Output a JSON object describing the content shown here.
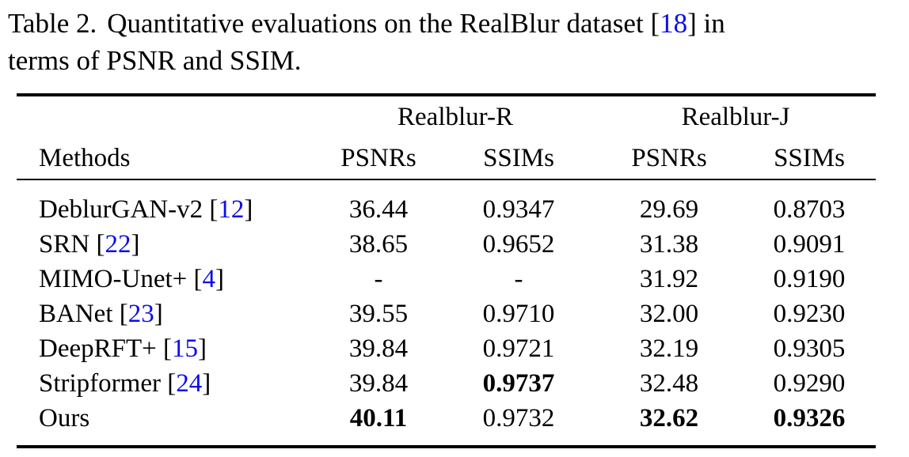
{
  "colors": {
    "citation_blue": "#0c0cee",
    "text": "#000000",
    "background": "#ffffff"
  },
  "caption": {
    "label": "Table 2.",
    "text": "Quantitative evaluations on the RealBlur dataset",
    "cite_open": "[",
    "cite": "18",
    "cite_close": "]",
    "line1_end": "in",
    "line2": "terms of PSNR and SSIM."
  },
  "table": {
    "group_headers": [
      "Realblur-R",
      "Realblur-J"
    ],
    "col_headers": [
      "Methods",
      "PSNRs",
      "SSIMs",
      "PSNRs",
      "SSIMs"
    ],
    "rows": [
      {
        "method": "DeblurGAN-v2",
        "cite": "12",
        "cells": [
          {
            "v": "36.44"
          },
          {
            "v": "0.9347"
          },
          {
            "v": "29.69"
          },
          {
            "v": "0.8703"
          }
        ]
      },
      {
        "method": "SRN",
        "cite": "22",
        "cells": [
          {
            "v": "38.65"
          },
          {
            "v": "0.9652"
          },
          {
            "v": "31.38"
          },
          {
            "v": "0.9091"
          }
        ]
      },
      {
        "method": "MIMO-Unet+",
        "cite": "4",
        "cells": [
          {
            "v": "-"
          },
          {
            "v": "-"
          },
          {
            "v": "31.92"
          },
          {
            "v": "0.9190"
          }
        ]
      },
      {
        "method": "BANet",
        "cite": "23",
        "cells": [
          {
            "v": "39.55"
          },
          {
            "v": "0.9710"
          },
          {
            "v": "32.00"
          },
          {
            "v": "0.9230"
          }
        ]
      },
      {
        "method": "DeepRFT+",
        "cite": "15",
        "cells": [
          {
            "v": "39.84"
          },
          {
            "v": "0.9721"
          },
          {
            "v": "32.19"
          },
          {
            "v": "0.9305"
          }
        ]
      },
      {
        "method": "Stripformer",
        "cite": "24",
        "cells": [
          {
            "v": "39.84"
          },
          {
            "v": "0.9737",
            "bold": true
          },
          {
            "v": "32.48"
          },
          {
            "v": "0.9290"
          }
        ]
      },
      {
        "method": "Ours",
        "cite": null,
        "cells": [
          {
            "v": "40.11",
            "bold": true
          },
          {
            "v": "0.9732"
          },
          {
            "v": "32.62",
            "bold": true
          },
          {
            "v": "0.9326",
            "bold": true
          }
        ]
      }
    ]
  }
}
